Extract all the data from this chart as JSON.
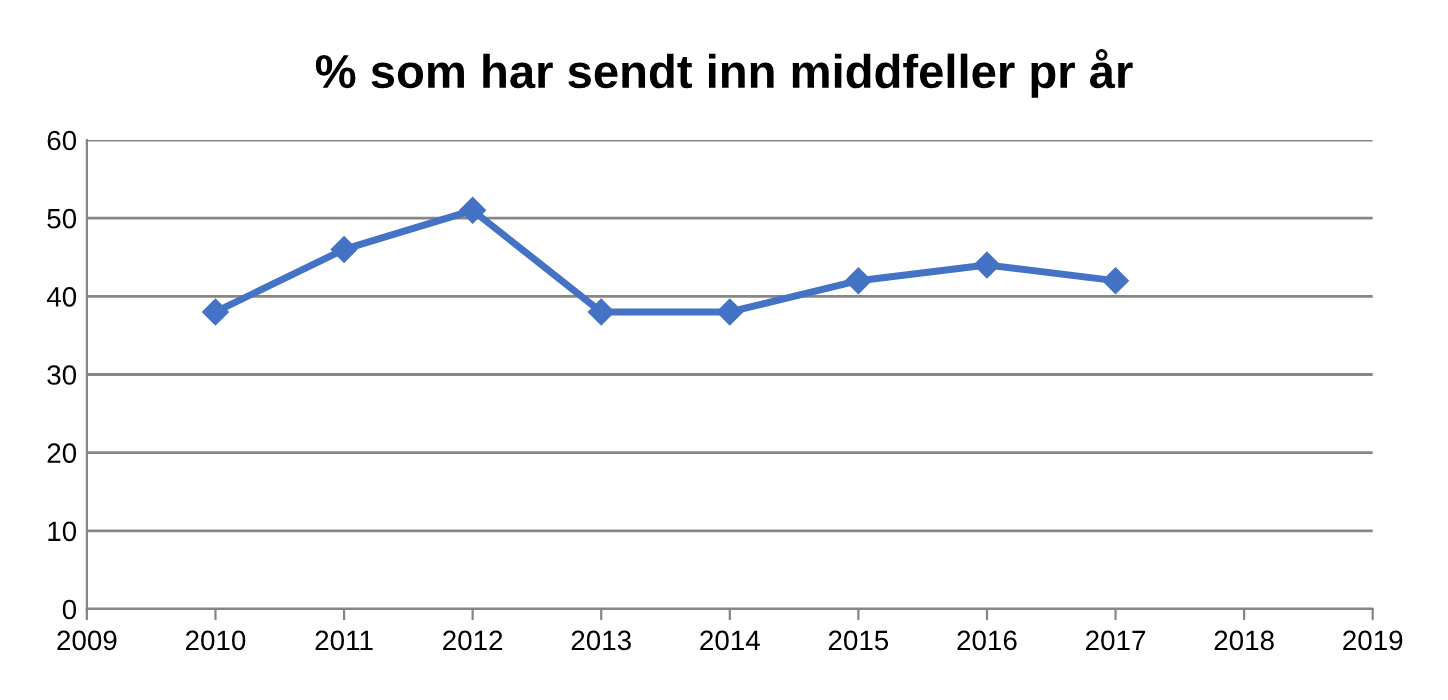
{
  "chart_data": {
    "type": "line",
    "title": "% som har sendt inn middfeller pr år",
    "x": [
      2010,
      2011,
      2012,
      2013,
      2014,
      2015,
      2016,
      2017
    ],
    "series": [
      {
        "color": "#4472c4",
        "values": [
          38,
          46,
          51,
          38,
          38,
          42,
          44,
          42
        ]
      }
    ],
    "xlim": [
      2009,
      2019
    ],
    "xticks": [
      2009,
      2010,
      2011,
      2012,
      2013,
      2014,
      2015,
      2016,
      2017,
      2018,
      2019
    ],
    "ylim": [
      0,
      60
    ],
    "yticks": [
      0,
      10,
      20,
      30,
      40,
      50,
      60
    ],
    "grid": "y",
    "marker": "diamond",
    "line_style": "solid",
    "legend": false
  }
}
